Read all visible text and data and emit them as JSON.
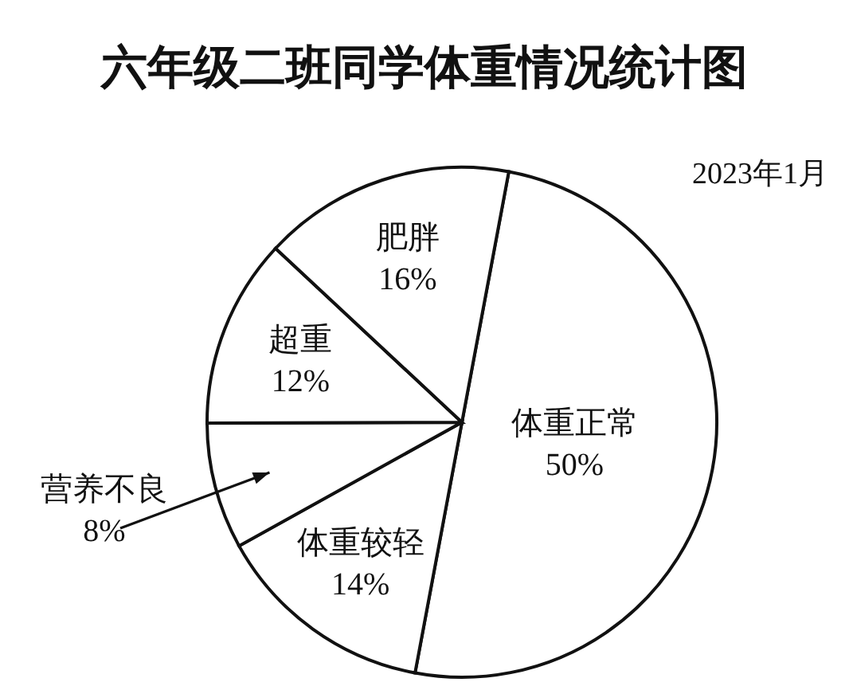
{
  "chart_data": {
    "type": "pie",
    "title": "六年级二班同学体重情况统计图",
    "subtitle": "2023年1月",
    "categories": [
      "体重正常",
      "体重较轻",
      "营养不良",
      "超重",
      "肥胖"
    ],
    "values": [
      50,
      14,
      8,
      12,
      16
    ],
    "value_labels": [
      "50%",
      "14%",
      "8%",
      "12%",
      "16%"
    ],
    "colors": [
      "#ffffff",
      "#ffffff",
      "#ffffff",
      "#ffffff",
      "#ffffff"
    ]
  }
}
